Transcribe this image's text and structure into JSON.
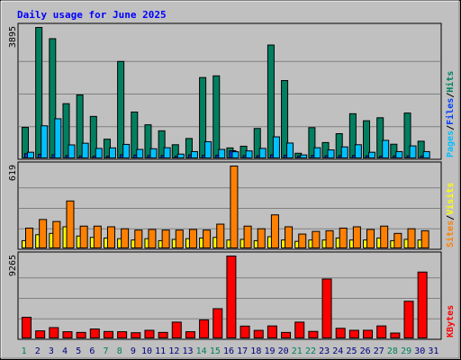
{
  "chart_data": {
    "type": "bar",
    "title": "Daily usage for June 2025",
    "categories": [
      "1",
      "2",
      "3",
      "4",
      "5",
      "6",
      "7",
      "8",
      "9",
      "10",
      "11",
      "12",
      "13",
      "14",
      "15",
      "16",
      "17",
      "18",
      "19",
      "20",
      "21",
      "22",
      "23",
      "24",
      "25",
      "26",
      "27",
      "28",
      "29",
      "30",
      "31"
    ],
    "weekend_days": [
      1,
      7,
      8,
      14,
      15,
      21,
      22,
      28,
      29
    ],
    "panels": [
      {
        "id": "hits-files-pages",
        "ymax_label": "3895",
        "ylim": [
          0,
          3895
        ],
        "grid": true,
        "legend": [
          {
            "label": "Pages",
            "color": "#00c0ff"
          },
          {
            "label": "/",
            "color": "#000000"
          },
          {
            "label": "Files",
            "color": "#0040ff"
          },
          {
            "label": "/",
            "color": "#000000"
          },
          {
            "label": "Hits",
            "color": "#008060"
          }
        ],
        "series": [
          {
            "name": "Hits",
            "color": "#008060",
            "values": [
              912,
              3895,
              3560,
              1620,
              1880,
              1240,
              560,
              2880,
              1370,
              990,
              810,
              395,
              580,
              2400,
              2450,
              300,
              350,
              880,
              3370,
              2310,
              140,
              905,
              460,
              725,
              1320,
              1110,
              1200,
              410,
              1340,
              500,
              0
            ]
          },
          {
            "name": "Files",
            "color": "#0040ff",
            "values": [
              130,
              110,
              95,
              70,
              60,
              55,
              50,
              95,
              85,
              70,
              75,
              50,
              90,
              80,
              80,
              215,
              70,
              65,
              90,
              80,
              60,
              75,
              65,
              70,
              75,
              60,
              55,
              60,
              60,
              55,
              0
            ]
          },
          {
            "name": "Pages",
            "color": "#00c0ff",
            "values": [
              170,
              960,
              1170,
              390,
              440,
              285,
              300,
              405,
              255,
              275,
              305,
              115,
              190,
              485,
              255,
              185,
              210,
              285,
              630,
              445,
              90,
              305,
              240,
              330,
              395,
              170,
              525,
              190,
              360,
              190,
              0
            ]
          }
        ]
      },
      {
        "id": "visits-sites",
        "ymax_label": "619",
        "ylim": [
          0,
          619
        ],
        "grid": true,
        "legend": [
          {
            "label": "Sites",
            "color": "#ff8000"
          },
          {
            "label": "/",
            "color": "#000000"
          },
          {
            "label": "Visits",
            "color": "#ffff00"
          }
        ],
        "series": [
          {
            "name": "Visits",
            "color": "#ffff00",
            "values": [
              55,
              100,
              110,
              160,
              90,
              80,
              75,
              70,
              60,
              70,
              55,
              65,
              70,
              75,
              80,
              60,
              65,
              55,
              85,
              60,
              50,
              60,
              60,
              75,
              60,
              60,
              75,
              55,
              65,
              60,
              0
            ]
          },
          {
            "name": "Sites",
            "color": "#ff8000",
            "values": [
              150,
              215,
              200,
              355,
              165,
              165,
              160,
              145,
              135,
              140,
              135,
              135,
              140,
              135,
              180,
              619,
              165,
              145,
              250,
              160,
              105,
              125,
              130,
              150,
              160,
              140,
              165,
              110,
              145,
              130,
              0
            ]
          }
        ]
      },
      {
        "id": "kbytes",
        "ymax_label": "9265",
        "ylim": [
          0,
          9265
        ],
        "grid": true,
        "legend": [
          {
            "label": "KBytes",
            "color": "#ff0000"
          }
        ],
        "series": [
          {
            "name": "KBytes",
            "color": "#ff0000",
            "values": [
              2340,
              800,
              1170,
              705,
              625,
              1010,
              730,
              705,
              590,
              865,
              625,
              1790,
              705,
              2045,
              3310,
              9265,
              1340,
              860,
              1360,
              625,
              1790,
              740,
              6670,
              1090,
              865,
              870,
              1360,
              555,
              4150,
              7455,
              0
            ]
          }
        ]
      }
    ],
    "colors": {
      "title": "#0000ff",
      "weekend_label": "#00805c",
      "weekday_label": "#000080",
      "ymax_label": "#000000",
      "plot_bg": "#c0c0c0",
      "frame_bg": "#c0c0c0"
    }
  }
}
